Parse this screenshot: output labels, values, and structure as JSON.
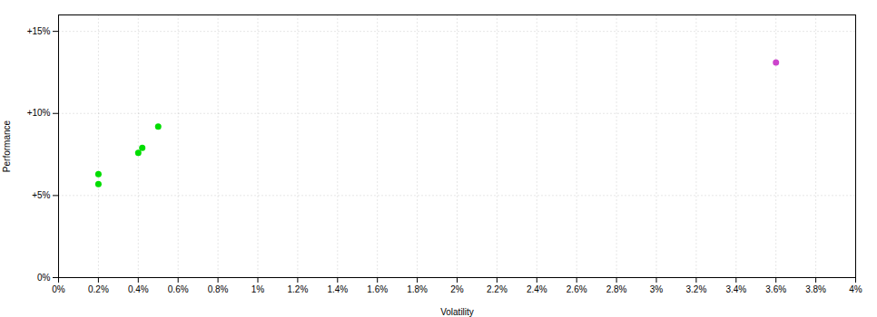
{
  "chart_data": {
    "type": "scatter",
    "xlabel": "Volatility",
    "ylabel": "Performance",
    "xlim": [
      0,
      0.04
    ],
    "ylim": [
      0,
      0.16
    ],
    "xticks": [
      {
        "value": 0,
        "label": "0%"
      },
      {
        "value": 0.002,
        "label": "0.2%"
      },
      {
        "value": 0.004,
        "label": "0.4%"
      },
      {
        "value": 0.006,
        "label": "0.6%"
      },
      {
        "value": 0.008,
        "label": "0.8%"
      },
      {
        "value": 0.01,
        "label": "1%"
      },
      {
        "value": 0.012,
        "label": "1.2%"
      },
      {
        "value": 0.014,
        "label": "1.4%"
      },
      {
        "value": 0.016,
        "label": "1.6%"
      },
      {
        "value": 0.018,
        "label": "1.8%"
      },
      {
        "value": 0.02,
        "label": "2%"
      },
      {
        "value": 0.022,
        "label": "2.2%"
      },
      {
        "value": 0.024,
        "label": "2.4%"
      },
      {
        "value": 0.026,
        "label": "2.6%"
      },
      {
        "value": 0.028,
        "label": "2.8%"
      },
      {
        "value": 0.03,
        "label": "3%"
      },
      {
        "value": 0.032,
        "label": "3.2%"
      },
      {
        "value": 0.034,
        "label": "3.4%"
      },
      {
        "value": 0.036,
        "label": "3.6%"
      },
      {
        "value": 0.038,
        "label": "3.8%"
      },
      {
        "value": 0.04,
        "label": "4%"
      }
    ],
    "yticks": [
      {
        "value": 0,
        "label": "0%"
      },
      {
        "value": 0.05,
        "label": "+5%"
      },
      {
        "value": 0.1,
        "label": "+10%"
      },
      {
        "value": 0.15,
        "label": "+15%"
      }
    ],
    "grid": true,
    "marker": "circle",
    "series": [
      {
        "color": "#00dd00",
        "values": [
          [
            0.002,
            0.063
          ],
          [
            0.002,
            0.057
          ],
          [
            0.004,
            0.076
          ],
          [
            0.0042,
            0.079
          ],
          [
            0.005,
            0.092
          ]
        ]
      },
      {
        "color": "#cc44cc",
        "values": [
          [
            0.036,
            0.131
          ]
        ]
      }
    ]
  }
}
